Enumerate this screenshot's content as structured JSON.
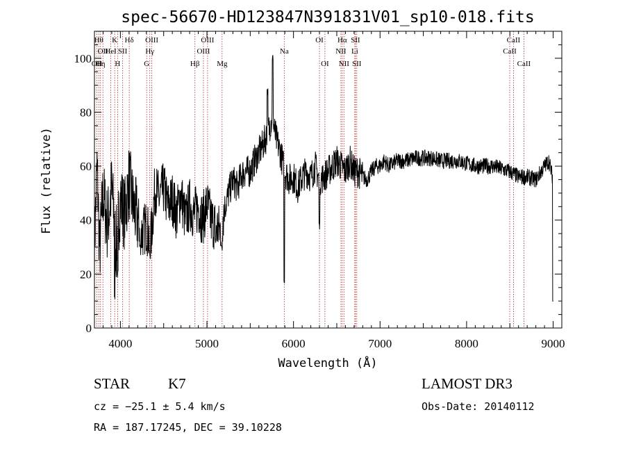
{
  "chart_data": {
    "type": "line",
    "title": "spec-56670-HD123847N391831V01_sp10-018.fits",
    "xlabel": "Wavelength (Å)",
    "ylabel": "Flux (relative)",
    "xlim": [
      3700,
      9100
    ],
    "ylim": [
      0,
      110
    ],
    "xticks": [
      4000,
      5000,
      6000,
      7000,
      8000,
      9000
    ],
    "yticks": [
      0,
      20,
      40,
      60,
      80,
      100
    ],
    "grid": false,
    "line_color": "#000000",
    "marker_color": "#b22222",
    "spectrum_anchors": [
      [
        3700,
        30
      ],
      [
        3730,
        60
      ],
      [
        3760,
        28
      ],
      [
        3800,
        50
      ],
      [
        3850,
        38
      ],
      [
        3900,
        52
      ],
      [
        3950,
        30
      ],
      [
        4000,
        48
      ],
      [
        4050,
        42
      ],
      [
        4100,
        55
      ],
      [
        4150,
        45
      ],
      [
        4200,
        40
      ],
      [
        4250,
        35
      ],
      [
        4300,
        38
      ],
      [
        4350,
        32
      ],
      [
        4400,
        52
      ],
      [
        4450,
        48
      ],
      [
        4500,
        52
      ],
      [
        4550,
        45
      ],
      [
        4600,
        48
      ],
      [
        4650,
        42
      ],
      [
        4700,
        50
      ],
      [
        4750,
        40
      ],
      [
        4800,
        46
      ],
      [
        4850,
        42
      ],
      [
        4900,
        45
      ],
      [
        4950,
        40
      ],
      [
        5000,
        46
      ],
      [
        5050,
        40
      ],
      [
        5100,
        38
      ],
      [
        5150,
        36
      ],
      [
        5200,
        44
      ],
      [
        5250,
        50
      ],
      [
        5300,
        55
      ],
      [
        5350,
        52
      ],
      [
        5400,
        57
      ],
      [
        5450,
        58
      ],
      [
        5500,
        58
      ],
      [
        5550,
        62
      ],
      [
        5600,
        65
      ],
      [
        5650,
        68
      ],
      [
        5700,
        72
      ],
      [
        5750,
        78
      ],
      [
        5800,
        70
      ],
      [
        5850,
        65
      ],
      [
        5900,
        58
      ],
      [
        5950,
        55
      ],
      [
        6000,
        56
      ],
      [
        6050,
        52
      ],
      [
        6100,
        56
      ],
      [
        6150,
        58
      ],
      [
        6200,
        56
      ],
      [
        6250,
        60
      ],
      [
        6300,
        55
      ],
      [
        6350,
        56
      ],
      [
        6400,
        58
      ],
      [
        6450,
        60
      ],
      [
        6500,
        62
      ],
      [
        6550,
        60
      ],
      [
        6600,
        58
      ],
      [
        6650,
        62
      ],
      [
        6700,
        58
      ],
      [
        6750,
        58
      ],
      [
        6800,
        56
      ],
      [
        6850,
        55
      ],
      [
        6900,
        58
      ],
      [
        6950,
        60
      ],
      [
        7000,
        60
      ],
      [
        7050,
        62
      ],
      [
        7100,
        60
      ],
      [
        7200,
        62
      ],
      [
        7300,
        62
      ],
      [
        7400,
        63
      ],
      [
        7500,
        63
      ],
      [
        7600,
        63
      ],
      [
        7700,
        62
      ],
      [
        7800,
        62
      ],
      [
        7900,
        62
      ],
      [
        8000,
        61
      ],
      [
        8100,
        60
      ],
      [
        8200,
        60
      ],
      [
        8300,
        60
      ],
      [
        8400,
        59
      ],
      [
        8500,
        58
      ],
      [
        8600,
        56
      ],
      [
        8700,
        56
      ],
      [
        8800,
        55
      ],
      [
        8900,
        60
      ],
      [
        8950,
        62
      ],
      [
        9000,
        55
      ]
    ],
    "spectrum_features": [
      {
        "wl": 3934,
        "value": 12
      },
      {
        "wl": 3968,
        "value": 20
      },
      {
        "wl": 4227,
        "value": 30
      },
      {
        "wl": 4340,
        "value": 27
      },
      {
        "wl": 5100,
        "value": 32
      },
      {
        "wl": 5172,
        "value": 30
      },
      {
        "wl": 5700,
        "value": 88
      },
      {
        "wl": 5760,
        "value": 100
      },
      {
        "wl": 5893,
        "value": 18
      },
      {
        "wl": 6300,
        "value": 38
      },
      {
        "wl": 8998,
        "value": 10
      }
    ],
    "spectral_lines": [
      {
        "wl": 3727,
        "label": "OII",
        "row": 2
      },
      {
        "wl": 3750,
        "label": "Hθ",
        "row": 0
      },
      {
        "wl": 3770,
        "label": "Hη",
        "row": 2
      },
      {
        "wl": 3798,
        "label": "OII",
        "row": 1
      },
      {
        "wl": 3889,
        "label": "HeI",
        "row": 1
      },
      {
        "wl": 3934,
        "label": "K",
        "row": 0
      },
      {
        "wl": 3968,
        "label": "H",
        "row": 2
      },
      {
        "wl": 4026,
        "label": "SII",
        "row": 1
      },
      {
        "wl": 4102,
        "label": "Hδ",
        "row": 0
      },
      {
        "wl": 4304,
        "label": "G",
        "row": 2
      },
      {
        "wl": 4340,
        "label": "Hγ",
        "row": 1
      },
      {
        "wl": 4363,
        "label": "OIII",
        "row": 0
      },
      {
        "wl": 4861,
        "label": "Hβ",
        "row": 2
      },
      {
        "wl": 4959,
        "label": "OIII",
        "row": 1
      },
      {
        "wl": 5007,
        "label": "OIII",
        "row": 0
      },
      {
        "wl": 5175,
        "label": "Mg",
        "row": 2
      },
      {
        "wl": 5893,
        "label": "Na",
        "row": 1
      },
      {
        "wl": 6300,
        "label": "OI",
        "row": 0
      },
      {
        "wl": 6363,
        "label": "OI",
        "row": 2
      },
      {
        "wl": 6548,
        "label": "NII",
        "row": 1
      },
      {
        "wl": 6563,
        "label": "Hα",
        "row": 0
      },
      {
        "wl": 6583,
        "label": "NII",
        "row": 2
      },
      {
        "wl": 6708,
        "label": "Li",
        "row": 1
      },
      {
        "wl": 6716,
        "label": "SII",
        "row": 0
      },
      {
        "wl": 6731,
        "label": "SII",
        "row": 2
      },
      {
        "wl": 8498,
        "label": "CaII",
        "row": 1
      },
      {
        "wl": 8542,
        "label": "CaII",
        "row": 0
      },
      {
        "wl": 8662,
        "label": "CaII",
        "row": 2
      }
    ]
  },
  "info": {
    "object_class": "STAR",
    "subclass": "K7",
    "survey": "LAMOST DR3",
    "redshift_line": "cz = −25.1 ± 5.4 km/s",
    "obs_date": "Obs-Date: 20140112",
    "coords": "RA = 187.17245, DEC =  39.10228"
  }
}
